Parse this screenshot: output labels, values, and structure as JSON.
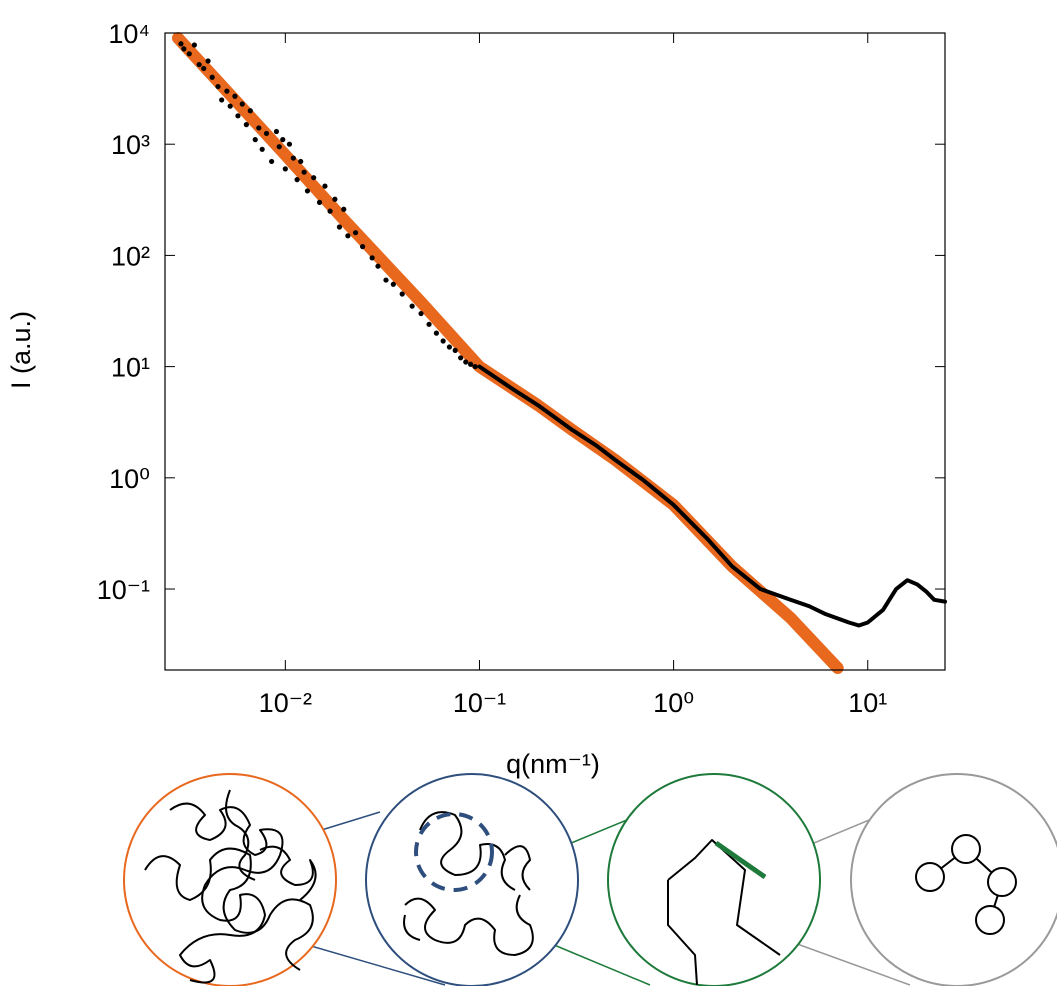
{
  "chart_data": {
    "type": "scatter",
    "xlabel": "q(nm⁻¹)",
    "ylabel": "I (a.u.)",
    "xscale": "log",
    "yscale": "log",
    "xlim": [
      0.0024,
      25
    ],
    "ylim": [
      0.0187,
      10000
    ],
    "xticks": [
      {
        "value": 0.01,
        "label": "10⁻²"
      },
      {
        "value": 0.1,
        "label": "10⁻¹"
      },
      {
        "value": 1,
        "label": "10⁰"
      },
      {
        "value": 10,
        "label": "10¹"
      }
    ],
    "yticks": [
      {
        "value": 0.1,
        "label": "10⁻¹"
      },
      {
        "value": 1,
        "label": "10⁰"
      },
      {
        "value": 10,
        "label": "10¹"
      },
      {
        "value": 100,
        "label": "10²"
      },
      {
        "value": 1000,
        "label": "10³"
      },
      {
        "value": 10000,
        "label": "10⁴"
      }
    ],
    "series": [
      {
        "color": "#e8681e",
        "mode": "thick-line",
        "x": [
          0.0028,
          0.005,
          0.01,
          0.02,
          0.05,
          0.1,
          0.2,
          0.3,
          0.5,
          1,
          2,
          4,
          7
        ],
        "values": [
          9000,
          3000,
          800,
          210,
          38,
          10,
          4.5,
          2.7,
          1.45,
          0.57,
          0.16,
          0.055,
          0.0195
        ]
      },
      {
        "color": "#000000",
        "mode": "markers",
        "x": [
          0.0029,
          0.003,
          0.0032,
          0.0034,
          0.0036,
          0.0038,
          0.004,
          0.0042,
          0.0045,
          0.0047,
          0.005,
          0.0052,
          0.0055,
          0.0057,
          0.006,
          0.0063,
          0.0066,
          0.007,
          0.0073,
          0.0076,
          0.008,
          0.0085,
          0.009,
          0.0093,
          0.0097,
          0.01,
          0.0105,
          0.011,
          0.0115,
          0.012,
          0.0125,
          0.013,
          0.014,
          0.015,
          0.016,
          0.017,
          0.018,
          0.019,
          0.02,
          0.021,
          0.023,
          0.025,
          0.028,
          0.03,
          0.033,
          0.036,
          0.04,
          0.045,
          0.05,
          0.055,
          0.06,
          0.065,
          0.07,
          0.075,
          0.08,
          0.085,
          0.09,
          0.095
        ],
        "values": [
          8000,
          7200,
          6500,
          7800,
          5200,
          4800,
          5600,
          4000,
          3300,
          2500,
          3000,
          2200,
          2700,
          1800,
          2300,
          1500,
          2000,
          1100,
          1400,
          900,
          1250,
          700,
          1300,
          950,
          1100,
          600,
          1000,
          750,
          480,
          700,
          560,
          380,
          500,
          300,
          420,
          250,
          320,
          180,
          260,
          150,
          160,
          120,
          95,
          80,
          60,
          55,
          45,
          35,
          30,
          24,
          20,
          17,
          15,
          14,
          12,
          11,
          10.5,
          10
        ]
      },
      {
        "color": "#000000",
        "mode": "line",
        "x": [
          0.1,
          0.15,
          0.2,
          0.3,
          0.4,
          0.5,
          0.7,
          1,
          1.5,
          2,
          2.8,
          4,
          5,
          6,
          8,
          9,
          10,
          12,
          14,
          16,
          18,
          20,
          22,
          25
        ],
        "values": [
          10,
          6.2,
          4.5,
          2.7,
          1.95,
          1.45,
          0.95,
          0.57,
          0.28,
          0.16,
          0.1,
          0.08,
          0.07,
          0.06,
          0.05,
          0.047,
          0.05,
          0.065,
          0.1,
          0.12,
          0.11,
          0.095,
          0.08,
          0.077
        ]
      }
    ]
  }
}
